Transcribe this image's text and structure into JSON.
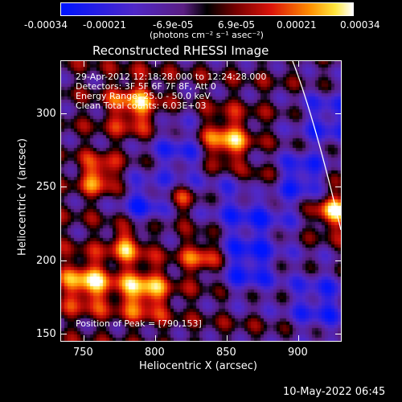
{
  "colorbar": {
    "ticks": [
      "-0.00034",
      "-0.00021",
      "-6.9e-05",
      "6.9e-05",
      "0.00021",
      "0.00034"
    ],
    "units": "(photons cm⁻² s⁻¹ asec⁻²)"
  },
  "plot": {
    "title": "Reconstructed RHESSI Image",
    "info_lines": [
      "29-Apr-2012 12:18:28.000 to 12:24:28.000",
      "Detectors: 3F 5F 6F 7F 8F, Att 0",
      "Energy Range: 25.0 - 50.0 keV",
      "Clean      Total counts: 6.03E+03"
    ],
    "peak_label": "Position of Peak = [790,153]",
    "xlabel": "Heliocentric X (arcsec)",
    "ylabel": "Heliocentric Y (arcsec)",
    "xticks": [
      "750",
      "800",
      "850",
      "900"
    ],
    "yticks": [
      "300",
      "250",
      "200",
      "150"
    ]
  },
  "footer": {
    "timestamp": "10-May-2022 06:45"
  }
}
